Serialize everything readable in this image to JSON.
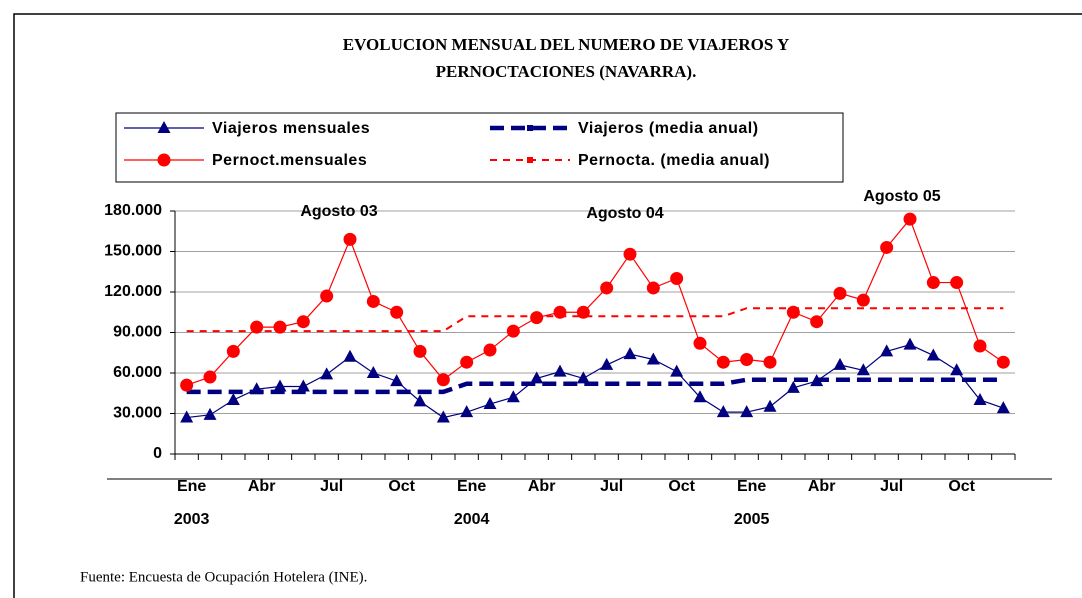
{
  "chart_data": {
    "type": "line",
    "title": "EVOLUCION MENSUAL DEL NUMERO DE VIAJEROS Y",
    "subtitle": "PERNOCTACIONES (NAVARRA).",
    "source": "Fuente: Encuesta de Ocupación Hotelera (INE).",
    "annotations": [
      "Agosto 03",
      "Agosto 04",
      "Agosto 05"
    ],
    "categories": [
      "Ene",
      null,
      null,
      "Abr",
      null,
      null,
      "Jul",
      null,
      null,
      "Oct",
      null,
      null,
      "Ene",
      null,
      null,
      "Abr",
      null,
      null,
      "Jul",
      null,
      null,
      "Oct",
      null,
      null,
      "Ene",
      null,
      null,
      "Abr",
      null,
      null,
      "Jul",
      null,
      null,
      "Oct",
      null,
      null
    ],
    "years": [
      "2003",
      "2004",
      "2005"
    ],
    "ylim": [
      0,
      180000
    ],
    "yticks": [
      0,
      {
        "value": 30000,
        "label": "30.000"
      },
      {
        "value": 60000,
        "label": "60.000"
      },
      {
        "value": 90000,
        "label": "90.000"
      },
      {
        "value": 120000,
        "label": "120.000"
      },
      {
        "value": 150000,
        "label": "150.000"
      },
      {
        "value": 180000,
        "label": "180.000"
      }
    ],
    "grid": true,
    "series": [
      {
        "name": "Viajeros mensuales",
        "color": "#000080",
        "marker": "triangle",
        "values": [
          27000,
          29000,
          40000,
          48000,
          50000,
          50000,
          59000,
          72000,
          60000,
          54000,
          39000,
          27000,
          31000,
          37000,
          42000,
          56000,
          61000,
          56000,
          66000,
          74000,
          70000,
          61000,
          42000,
          31000,
          31000,
          35000,
          49000,
          54000,
          66000,
          62000,
          76000,
          81000,
          73000,
          62000,
          40000,
          34000
        ]
      },
      {
        "name": "Viajeros (media anual)",
        "color": "#000080",
        "dash": "thick",
        "values": [
          46000,
          46000,
          46000,
          46000,
          46000,
          46000,
          46000,
          46000,
          46000,
          46000,
          46000,
          46000,
          52000,
          52000,
          52000,
          52000,
          52000,
          52000,
          52000,
          52000,
          52000,
          52000,
          52000,
          52000,
          55000,
          55000,
          55000,
          55000,
          55000,
          55000,
          55000,
          55000,
          55000,
          55000,
          55000,
          55000
        ]
      },
      {
        "name": "Pernoct.mensuales",
        "color": "#ff0000",
        "marker": "circle",
        "values": [
          51000,
          57000,
          76000,
          94000,
          94000,
          98000,
          117000,
          159000,
          113000,
          105000,
          76000,
          55000,
          68000,
          77000,
          91000,
          101000,
          105000,
          105000,
          123000,
          148000,
          123000,
          130000,
          82000,
          68000,
          70000,
          68000,
          105000,
          98000,
          119000,
          114000,
          153000,
          174000,
          127000,
          127000,
          80000,
          68000
        ]
      },
      {
        "name": "Pernocta. (media anual)",
        "color": "#ff0000",
        "dash": "thin",
        "values": [
          91000,
          91000,
          91000,
          91000,
          91000,
          91000,
          91000,
          91000,
          91000,
          91000,
          91000,
          91000,
          102000,
          102000,
          102000,
          102000,
          102000,
          102000,
          102000,
          102000,
          102000,
          102000,
          102000,
          102000,
          108000,
          108000,
          108000,
          108000,
          108000,
          108000,
          108000,
          108000,
          108000,
          108000,
          108000,
          108000
        ]
      }
    ]
  }
}
